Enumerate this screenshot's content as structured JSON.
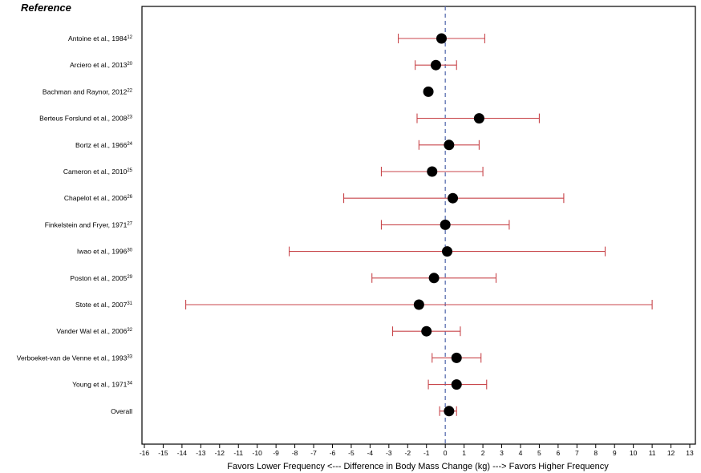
{
  "chart_data": {
    "type": "forest",
    "title": "Reference",
    "xlabel": "Favors Lower Frequency <--- Difference in Body Mass Change (kg) ---> Favors Higher Frequency",
    "xlim": [
      -16,
      13
    ],
    "xticks": [
      -16,
      -15,
      -14,
      -13,
      -12,
      -11,
      -10,
      -9,
      -8,
      -7,
      -6,
      -5,
      -4,
      -3,
      -2,
      -1,
      0,
      1,
      2,
      3,
      4,
      5,
      6,
      7,
      8,
      9,
      10,
      11,
      12,
      13
    ],
    "reference_line": 0,
    "colors": {
      "ci": "#c8464b",
      "point": "#000000",
      "refline": "#5a6fb0"
    },
    "studies": [
      {
        "name": "Antoine et al., 1984",
        "ref": "12",
        "estimate": -0.2,
        "lower": -2.5,
        "upper": 2.1
      },
      {
        "name": "Arciero et al., 2013",
        "ref": "20",
        "estimate": -0.5,
        "lower": -1.6,
        "upper": 0.6
      },
      {
        "name": "Bachman and Raynor, 2012",
        "ref": "22",
        "estimate": -0.9,
        "lower": -1.0,
        "upper": -0.8
      },
      {
        "name": "Berteus Forslund et al., 2008",
        "ref": "23",
        "estimate": 1.8,
        "lower": -1.5,
        "upper": 5.0
      },
      {
        "name": "Bortz et al., 1966",
        "ref": "24",
        "estimate": 0.2,
        "lower": -1.4,
        "upper": 1.8
      },
      {
        "name": "Cameron et al., 2010",
        "ref": "25",
        "estimate": -0.7,
        "lower": -3.4,
        "upper": 2.0
      },
      {
        "name": "Chapelot et al., 2006",
        "ref": "26",
        "estimate": 0.4,
        "lower": -5.4,
        "upper": 6.3
      },
      {
        "name": "Finkelstein and Fryer, 1971",
        "ref": "27",
        "estimate": 0.0,
        "lower": -3.4,
        "upper": 3.4
      },
      {
        "name": "Iwao et al., 1996",
        "ref": "30",
        "estimate": 0.1,
        "lower": -8.3,
        "upper": 8.5
      },
      {
        "name": "Poston et al., 2005",
        "ref": "29",
        "estimate": -0.6,
        "lower": -3.9,
        "upper": 2.7
      },
      {
        "name": "Stote et al., 2007",
        "ref": "31",
        "estimate": -1.4,
        "lower": -13.8,
        "upper": 11.0
      },
      {
        "name": "Vander Wal et al., 2006",
        "ref": "32",
        "estimate": -1.0,
        "lower": -2.8,
        "upper": 0.8
      },
      {
        "name": "Verboeket-van de Venne et al., 1993",
        "ref": "33",
        "estimate": 0.6,
        "lower": -0.7,
        "upper": 1.9
      },
      {
        "name": "Young et al., 1971",
        "ref": "34",
        "estimate": 0.6,
        "lower": -0.9,
        "upper": 2.2
      },
      {
        "name": "Overall",
        "ref": "",
        "estimate": 0.2,
        "lower": -0.3,
        "upper": 0.6
      }
    ]
  }
}
